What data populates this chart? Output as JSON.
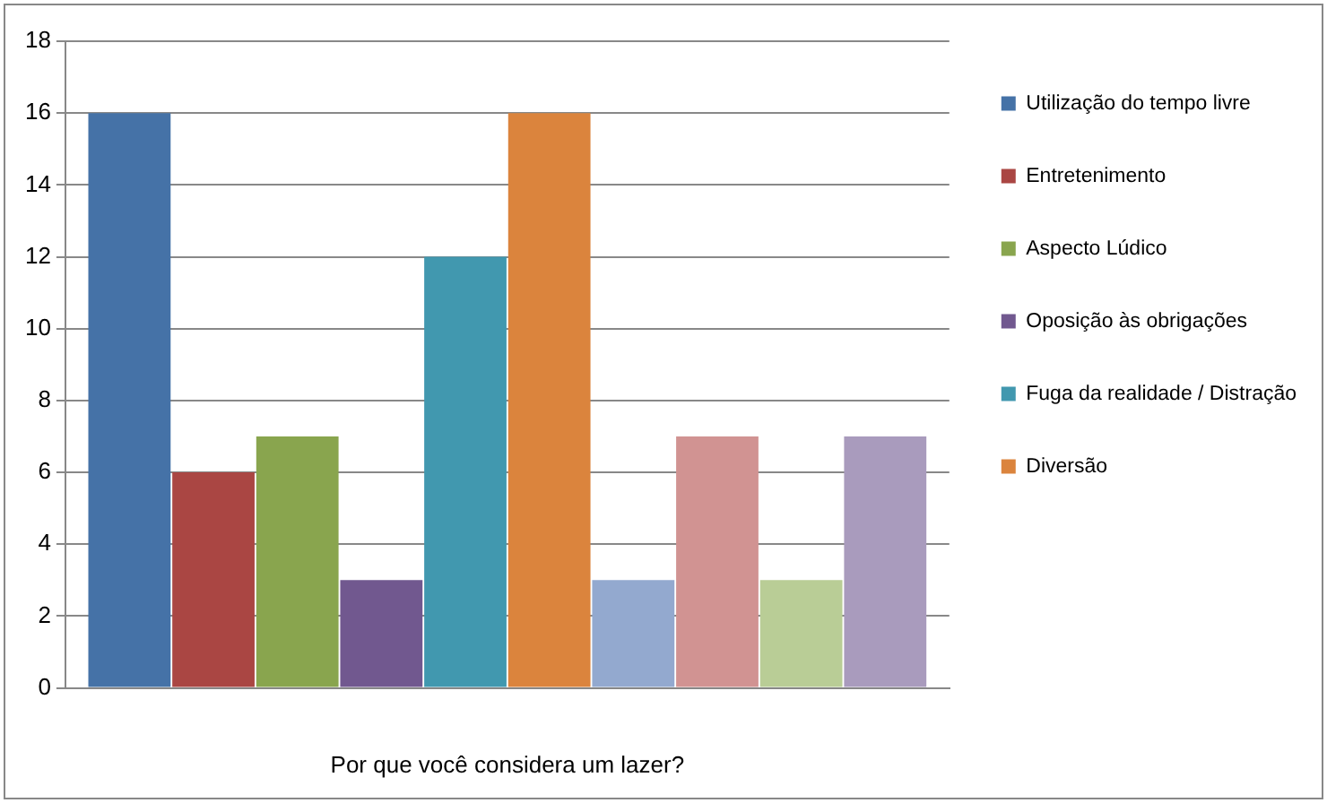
{
  "chart_data": {
    "type": "bar",
    "xlabel": "Por que você considera um lazer?",
    "categories": [
      null
    ],
    "series": [
      {
        "name": "Utilização do tempo livre",
        "color": "#4572a7",
        "values": [
          16
        ]
      },
      {
        "name": "Entretenimento",
        "color": "#aa4643",
        "values": [
          6
        ]
      },
      {
        "name": "Aspecto Lúdico",
        "color": "#89a54e",
        "values": [
          7
        ]
      },
      {
        "name": "Oposição às obrigações",
        "color": "#71588f",
        "values": [
          3
        ]
      },
      {
        "name": "Fuga da realidade / Distração",
        "color": "#4198af",
        "values": [
          12
        ]
      },
      {
        "name": "Diversão",
        "color": "#db843d",
        "values": [
          16
        ]
      },
      {
        "color": "#93a9cf",
        "values": [
          3
        ]
      },
      {
        "color": "#d19392",
        "values": [
          7
        ]
      },
      {
        "color": "#b9cd96",
        "values": [
          3
        ]
      },
      {
        "color": "#a99bbd",
        "values": [
          7
        ]
      }
    ],
    "ylim": [
      0,
      18
    ],
    "yticks": [
      0,
      2,
      4,
      6,
      8,
      10,
      12,
      14,
      16,
      18
    ],
    "grid": "y",
    "legend": "right"
  }
}
